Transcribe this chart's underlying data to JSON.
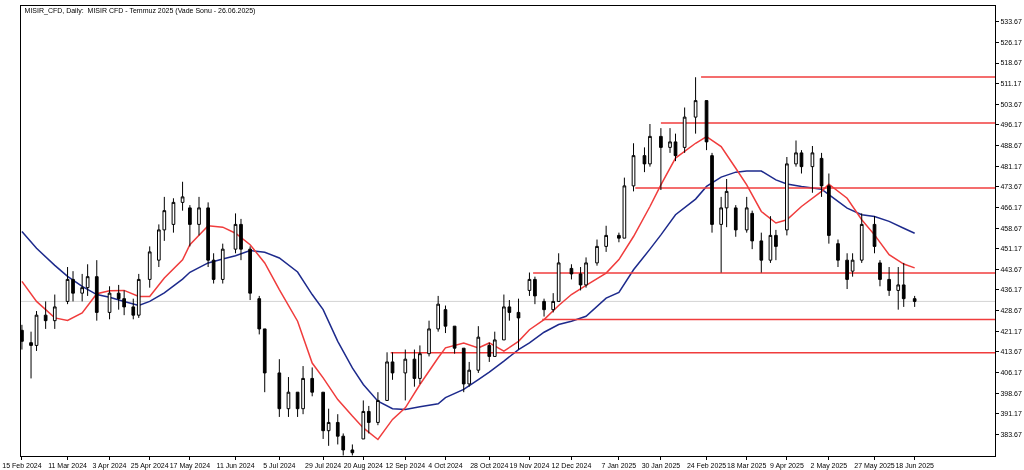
{
  "chart_data": {
    "type": "candlestick",
    "title": "MISIR_CFD, Daily:  MISIR CFD - Temmuz 2025 (Vade Sonu - 26.06.2025)",
    "color": "#000000",
    "x": [
      "2024-02-15",
      "2024-02-20",
      "2024-02-23",
      "2024-02-28",
      "2024-03-04",
      "2024-03-11",
      "2024-03-14",
      "2024-03-19",
      "2024-03-22",
      "2024-03-27",
      "2024-04-03",
      "2024-04-08",
      "2024-04-11",
      "2024-04-16",
      "2024-04-19",
      "2024-04-25",
      "2024-04-30",
      "2024-05-03",
      "2024-05-08",
      "2024-05-13",
      "2024-05-17",
      "2024-05-22",
      "2024-05-27",
      "2024-05-30",
      "2024-06-04",
      "2024-06-11",
      "2024-06-14",
      "2024-06-19",
      "2024-06-24",
      "2024-06-27",
      "2024-07-05",
      "2024-07-10",
      "2024-07-15",
      "2024-07-18",
      "2024-07-23",
      "2024-07-29",
      "2024-08-01",
      "2024-08-06",
      "2024-08-09",
      "2024-08-14",
      "2024-08-20",
      "2024-08-23",
      "2024-08-28",
      "2024-09-02",
      "2024-09-05",
      "2024-09-12",
      "2024-09-17",
      "2024-09-20",
      "2024-09-25",
      "2024-09-30",
      "2024-10-04",
      "2024-10-09",
      "2024-10-14",
      "2024-10-17",
      "2024-10-22",
      "2024-10-28",
      "2024-10-31",
      "2024-11-05",
      "2024-11-08",
      "2024-11-13",
      "2024-11-19",
      "2024-11-22",
      "2024-11-27",
      "2024-12-02",
      "2024-12-05",
      "2024-12-12",
      "2024-12-17",
      "2024-12-20",
      "2024-12-26",
      "2024-12-31",
      "2025-01-07",
      "2025-01-10",
      "2025-01-15",
      "2025-01-21",
      "2025-01-24",
      "2025-01-30",
      "2025-02-04",
      "2025-02-07",
      "2025-02-12",
      "2025-02-18",
      "2025-02-24",
      "2025-02-27",
      "2025-03-04",
      "2025-03-07",
      "2025-03-12",
      "2025-03-18",
      "2025-03-21",
      "2025-03-26",
      "2025-03-31",
      "2025-04-03",
      "2025-04-09",
      "2025-04-14",
      "2025-04-17",
      "2025-04-23",
      "2025-04-28",
      "2025-05-02",
      "2025-05-07",
      "2025-05-12",
      "2025-05-15",
      "2025-05-20",
      "2025-05-27",
      "2025-05-30",
      "2025-06-04",
      "2025-06-09",
      "2025-06-12",
      "2025-06-18"
    ],
    "ohlc": [
      [
        421.5,
        423.5,
        414.5,
        417.5
      ],
      [
        417,
        421,
        404,
        416
      ],
      [
        416,
        428.5,
        414,
        427
      ],
      [
        427,
        432,
        422,
        425
      ],
      [
        425,
        434.5,
        422,
        430
      ],
      [
        432,
        444.5,
        431,
        440
      ],
      [
        440,
        443,
        432,
        435
      ],
      [
        435,
        442,
        432,
        437
      ],
      [
        437,
        445.5,
        434,
        441
      ],
      [
        441,
        447,
        425,
        428
      ],
      [
        428,
        437.5,
        425.5,
        435
      ],
      [
        435,
        438,
        429,
        433
      ],
      [
        433,
        436,
        427,
        430
      ],
      [
        430,
        433,
        425.5,
        427
      ],
      [
        427,
        442,
        426,
        440
      ],
      [
        440,
        452,
        437,
        450
      ],
      [
        447,
        460,
        444.5,
        458
      ],
      [
        458,
        470,
        454,
        465
      ],
      [
        460,
        469.5,
        457,
        468
      ],
      [
        468,
        475.5,
        465,
        470
      ],
      [
        466,
        467,
        452,
        460
      ],
      [
        460,
        470,
        456,
        466
      ],
      [
        466,
        468,
        444.5,
        447
      ],
      [
        447,
        449.5,
        438.5,
        440
      ],
      [
        440,
        453,
        438.5,
        451
      ],
      [
        451,
        464,
        449.5,
        460
      ],
      [
        460,
        462,
        447,
        451
      ],
      [
        451,
        452,
        432.5,
        435
      ],
      [
        433,
        434,
        420,
        422
      ],
      [
        422,
        422,
        399,
        406
      ],
      [
        406,
        411,
        390,
        393
      ],
      [
        393,
        404.5,
        390,
        399
      ],
      [
        399,
        399,
        390,
        393
      ],
      [
        393,
        408.5,
        391,
        404
      ],
      [
        404,
        408,
        397.5,
        399
      ],
      [
        399,
        399,
        382,
        385
      ],
      [
        385,
        393,
        379.5,
        388
      ],
      [
        388,
        391,
        380,
        383
      ],
      [
        383,
        384,
        376,
        378
      ],
      [
        378,
        380,
        376,
        377
      ],
      [
        382,
        396,
        382,
        392
      ],
      [
        392,
        394,
        384,
        388
      ],
      [
        388,
        399,
        387,
        396
      ],
      [
        396,
        413.5,
        396,
        410
      ],
      [
        410,
        413.5,
        403.5,
        406
      ],
      [
        406,
        414.5,
        396,
        411
      ],
      [
        411,
        414.5,
        401,
        404
      ],
      [
        404,
        416,
        402,
        413
      ],
      [
        413,
        425,
        412,
        422
      ],
      [
        422,
        434,
        421,
        431
      ],
      [
        429,
        430.5,
        420.5,
        423
      ],
      [
        423,
        423,
        413,
        415
      ],
      [
        415,
        415,
        399,
        402
      ],
      [
        402,
        410,
        401,
        407
      ],
      [
        407,
        423,
        406,
        419
      ],
      [
        416,
        417,
        410,
        412
      ],
      [
        412,
        421,
        412,
        418
      ],
      [
        418,
        434.5,
        418,
        430
      ],
      [
        430,
        432.5,
        425,
        428
      ],
      [
        428,
        433,
        414.5,
        426
      ],
      [
        436,
        442.5,
        434,
        440
      ],
      [
        440,
        441,
        431,
        434
      ],
      [
        432,
        433,
        426.5,
        429
      ],
      [
        429,
        435,
        428,
        432
      ],
      [
        432,
        449.5,
        432,
        446
      ],
      [
        444,
        445.5,
        440,
        442
      ],
      [
        442,
        444.5,
        436,
        438
      ],
      [
        438,
        448,
        437,
        446
      ],
      [
        446,
        454.5,
        445,
        452
      ],
      [
        452,
        459.5,
        450,
        456
      ],
      [
        456,
        457,
        453.5,
        455
      ],
      [
        455,
        477,
        455,
        474
      ],
      [
        474,
        489.5,
        472,
        485
      ],
      [
        485,
        488,
        479,
        482
      ],
      [
        482,
        496.5,
        481,
        492
      ],
      [
        492,
        495,
        472.5,
        488
      ],
      [
        488,
        495,
        486,
        490
      ],
      [
        490,
        493,
        483,
        485
      ],
      [
        488,
        502.5,
        486,
        499
      ],
      [
        499,
        513.5,
        493,
        505
      ],
      [
        505,
        505,
        487,
        490
      ],
      [
        485,
        486,
        457,
        460
      ],
      [
        460,
        470,
        442.5,
        466
      ],
      [
        466,
        476.5,
        459,
        472
      ],
      [
        466,
        467,
        455.5,
        458
      ],
      [
        458,
        470,
        457,
        466
      ],
      [
        464,
        465,
        451,
        454
      ],
      [
        454,
        457,
        442.5,
        447
      ],
      [
        447,
        463,
        446,
        456
      ],
      [
        456,
        458,
        447,
        452
      ],
      [
        458,
        484.5,
        456,
        482
      ],
      [
        482,
        490.5,
        481,
        486
      ],
      [
        486,
        487,
        478.5,
        481
      ],
      [
        481,
        488.5,
        471.5,
        486
      ],
      [
        484,
        486,
        470,
        474
      ],
      [
        474,
        478.5,
        453,
        456
      ],
      [
        453,
        454.5,
        444.5,
        447
      ],
      [
        447,
        449.5,
        436.5,
        440
      ],
      [
        443,
        449.5,
        441,
        447
      ],
      [
        447,
        464,
        446,
        460
      ],
      [
        460,
        463,
        449.5,
        452
      ],
      [
        446,
        447,
        437.5,
        440
      ],
      [
        440,
        444.5,
        434,
        436
      ],
      [
        436,
        444.5,
        429,
        438
      ],
      [
        438,
        446,
        430,
        433
      ],
      [
        433,
        434,
        430,
        432
      ]
    ],
    "series": [
      {
        "type": "line",
        "color": "#1d2a8c",
        "x": [
          "2024-02-15",
          "2024-02-23",
          "2024-03-04",
          "2024-03-11",
          "2024-03-19",
          "2024-03-27",
          "2024-04-03",
          "2024-04-11",
          "2024-04-19",
          "2024-04-25",
          "2024-05-03",
          "2024-05-13",
          "2024-05-17",
          "2024-05-27",
          "2024-06-04",
          "2024-06-11",
          "2024-06-19",
          "2024-06-27",
          "2024-07-05",
          "2024-07-15",
          "2024-07-23",
          "2024-07-29",
          "2024-08-06",
          "2024-08-14",
          "2024-08-20",
          "2024-08-28",
          "2024-09-05",
          "2024-09-12",
          "2024-09-20",
          "2024-09-30",
          "2024-10-04",
          "2024-10-14",
          "2024-10-22",
          "2024-10-28",
          "2024-11-05",
          "2024-11-13",
          "2024-11-19",
          "2024-11-27",
          "2024-12-05",
          "2024-12-12",
          "2024-12-20",
          "2024-12-31",
          "2025-01-07",
          "2025-01-15",
          "2025-01-24",
          "2025-01-30",
          "2025-02-07",
          "2025-02-18",
          "2025-02-24",
          "2025-03-04",
          "2025-03-12",
          "2025-03-18",
          "2025-03-26",
          "2025-04-03",
          "2025-04-09",
          "2025-04-17",
          "2025-04-28",
          "2025-05-02",
          "2025-05-12",
          "2025-05-20",
          "2025-05-27",
          "2025-06-04",
          "2025-06-12",
          "2025-06-18"
        ],
        "values": [
          457.4,
          451.3,
          445.1,
          441.1,
          437.5,
          434.5,
          433.5,
          432.0,
          430.5,
          432.0,
          435.1,
          440.1,
          442.6,
          446.0,
          447.4,
          448.6,
          450.5,
          449.9,
          447.8,
          442.7,
          434.5,
          429.0,
          417.5,
          407.8,
          401.8,
          395.7,
          393.0,
          392.7,
          393.7,
          394.8,
          397.0,
          400.0,
          403.6,
          406.3,
          410.3,
          414.5,
          416.9,
          420.8,
          423.6,
          424.8,
          426.6,
          433.2,
          435.3,
          443.5,
          451.0,
          456.2,
          463.5,
          469.2,
          473.8,
          477.2,
          479.0,
          479.4,
          479.4,
          476.2,
          474.7,
          473.8,
          472.8,
          470.8,
          465.9,
          463.5,
          462.9,
          461.1,
          458.6,
          456.8
        ]
      },
      {
        "type": "line",
        "color": "#f03c3c",
        "x": [
          "2024-02-15",
          "2024-02-23",
          "2024-03-04",
          "2024-03-11",
          "2024-03-19",
          "2024-03-27",
          "2024-04-03",
          "2024-04-11",
          "2024-04-19",
          "2024-04-25",
          "2024-05-03",
          "2024-05-13",
          "2024-05-17",
          "2024-05-27",
          "2024-06-04",
          "2024-06-11",
          "2024-06-19",
          "2024-06-27",
          "2024-07-05",
          "2024-07-15",
          "2024-07-23",
          "2024-07-29",
          "2024-08-06",
          "2024-08-14",
          "2024-08-20",
          "2024-08-28",
          "2024-09-05",
          "2024-09-12",
          "2024-09-20",
          "2024-09-30",
          "2024-10-04",
          "2024-10-14",
          "2024-10-22",
          "2024-10-28",
          "2024-11-05",
          "2024-11-13",
          "2024-11-19",
          "2024-11-27",
          "2024-12-05",
          "2024-12-12",
          "2024-12-20",
          "2024-12-31",
          "2025-01-07",
          "2025-01-15",
          "2025-01-24",
          "2025-01-30",
          "2025-02-07",
          "2025-02-18",
          "2025-02-24",
          "2025-03-04",
          "2025-03-12",
          "2025-03-18",
          "2025-03-26",
          "2025-04-03",
          "2025-04-09",
          "2025-04-17",
          "2025-04-28",
          "2025-05-02",
          "2025-05-12",
          "2025-05-20",
          "2025-05-27",
          "2025-06-04",
          "2025-06-12",
          "2025-06-18"
        ],
        "values": [
          439.3,
          432.0,
          426.0,
          425.1,
          427.8,
          434.8,
          435.9,
          436.0,
          433.8,
          433.8,
          440.5,
          447.1,
          452.6,
          459.5,
          459.0,
          456.8,
          452.6,
          446.0,
          436.3,
          424.8,
          409.6,
          404.2,
          396.3,
          390.3,
          386.0,
          381.8,
          389.1,
          393.3,
          401.8,
          411.5,
          415.1,
          416.9,
          415.1,
          416.9,
          413.9,
          417.5,
          421.7,
          425.4,
          430.5,
          434.5,
          437.8,
          442.3,
          447.2,
          455.6,
          466.5,
          474.4,
          484.1,
          489.5,
          491.9,
          488.3,
          480.4,
          474.4,
          464.7,
          460.5,
          461.7,
          466.5,
          472.0,
          474.6,
          469.5,
          461.7,
          456.2,
          449.0,
          445.6,
          444.2
        ]
      },
      {
        "type": "line",
        "color": "#f03c3c",
        "x": [
          "2025-02-21",
          "2025-08-01"
        ],
        "values": [
          513.6,
          513.6
        ]
      },
      {
        "type": "line",
        "color": "#f03c3c",
        "x": [
          "2025-01-30",
          "2025-08-01"
        ],
        "values": [
          496.9,
          496.9
        ]
      },
      {
        "type": "line",
        "color": "#f03c3c",
        "x": [
          "2025-01-16",
          "2025-08-01"
        ],
        "values": [
          473.2,
          473.2
        ]
      },
      {
        "type": "line",
        "color": "#f03c3c",
        "x": [
          "2024-11-21",
          "2025-08-01"
        ],
        "values": [
          442.3,
          442.3
        ]
      },
      {
        "type": "line",
        "color": "#f03c3c",
        "x": [
          "2024-11-26",
          "2025-08-01"
        ],
        "values": [
          425.4,
          425.4
        ]
      },
      {
        "type": "line",
        "color": "#f03c3c",
        "x": [
          "2024-09-04",
          "2025-08-01"
        ],
        "values": [
          413.3,
          413.3
        ]
      }
    ],
    "ref_lines": [
      {
        "axis": "y",
        "value": 432.0,
        "color": "#d4d4d4"
      }
    ],
    "xlim": [
      "2024-02-14T12:00",
      "2025-08-01"
    ],
    "xticks": [
      {
        "value": "2024-02-15",
        "label": "15 Feb 2024"
      },
      {
        "value": "2024-03-11",
        "label": "11 Mar 2024"
      },
      {
        "value": "2024-04-03",
        "label": "3 Apr 2024"
      },
      {
        "value": "2024-04-25",
        "label": "25 Apr 2024"
      },
      {
        "value": "2024-05-17",
        "label": "17 May 2024"
      },
      {
        "value": "2024-06-11",
        "label": "11 Jun 2024"
      },
      {
        "value": "2024-07-05",
        "label": "5 Jul 2024"
      },
      {
        "value": "2024-07-29",
        "label": "29 Jul 2024"
      },
      {
        "value": "2024-08-20",
        "label": "20 Aug 2024"
      },
      {
        "value": "2024-09-12",
        "label": "12 Sep 2024"
      },
      {
        "value": "2024-10-04",
        "label": "4 Oct 2024"
      },
      {
        "value": "2024-10-28",
        "label": "28 Oct 2024"
      },
      {
        "value": "2024-11-19",
        "label": "19 Nov 2024"
      },
      {
        "value": "2024-12-12",
        "label": "12 Dec 2024"
      },
      {
        "value": "2025-01-07",
        "label": "7 Jan 2025"
      },
      {
        "value": "2025-01-30",
        "label": "30 Jan 2025"
      },
      {
        "value": "2025-02-24",
        "label": "24 Feb 2025"
      },
      {
        "value": "2025-03-18",
        "label": "18 Mar 2025"
      },
      {
        "value": "2025-04-09",
        "label": "9 Apr 2025"
      },
      {
        "value": "2025-05-02",
        "label": "2 May 2025"
      },
      {
        "value": "2025-05-27",
        "label": "27 May 2025"
      },
      {
        "value": "2025-06-18",
        "label": "18 Jun 2025"
      }
    ],
    "ylim": [
      375.8,
      539.4
    ],
    "yticks": [
      383.67,
      391.17,
      398.67,
      406.17,
      413.67,
      421.17,
      428.67,
      436.17,
      443.67,
      451.17,
      458.67,
      466.17,
      473.67,
      481.17,
      488.67,
      496.17,
      503.67,
      511.17,
      518.67,
      526.17,
      533.67
    ]
  }
}
